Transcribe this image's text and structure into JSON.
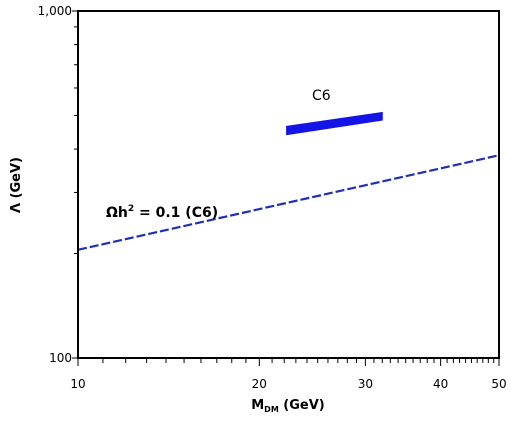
{
  "chart_data": {
    "type": "line",
    "xscale": "log",
    "yscale": "log",
    "xlim": [
      10,
      50
    ],
    "ylim": [
      100,
      1000
    ],
    "x_ticks": [
      {
        "value": 10,
        "label": "10"
      },
      {
        "value": 20,
        "label": "20"
      },
      {
        "value": 30,
        "label": "30"
      },
      {
        "value": 40,
        "label": "40"
      },
      {
        "value": 50,
        "label": "50"
      }
    ],
    "x_minor_ticks": [
      11,
      12,
      13,
      14,
      15,
      16,
      17,
      18,
      19,
      21,
      22,
      23,
      24,
      25,
      26,
      27,
      28,
      29,
      31,
      32,
      33,
      34,
      35,
      36,
      37,
      38,
      39,
      41,
      42,
      43,
      44,
      45,
      46,
      47,
      48,
      49
    ],
    "y_ticks": [
      {
        "value": 100,
        "label": "100"
      },
      {
        "value": 1000,
        "label": "1,000"
      }
    ],
    "y_minor_ticks": [
      200,
      300,
      400,
      500,
      600,
      700,
      800,
      900
    ],
    "xlabel_main": "M",
    "xlabel_sub": "DM",
    "xlabel_rest": " (GeV)",
    "ylabel": "Λ (GeV)",
    "grid": false,
    "series": [
      {
        "name": "Ωh² = 0.1 (C6)",
        "style": "dashed",
        "color": "#1f2fb8",
        "x": [
          10,
          50
        ],
        "y": [
          205,
          384
        ]
      },
      {
        "name": "C6",
        "style": "band",
        "color": "#1414e6",
        "x": [
          22.2,
          32
        ],
        "y_low": [
          440,
          485
        ],
        "y_high": [
          465,
          510
        ]
      }
    ],
    "annotations": {
      "relic_label_prefix": "Ωh",
      "relic_label_sup": "2",
      "relic_label_suffix": " = 0.1 (C6)",
      "band_label": "C6"
    }
  }
}
